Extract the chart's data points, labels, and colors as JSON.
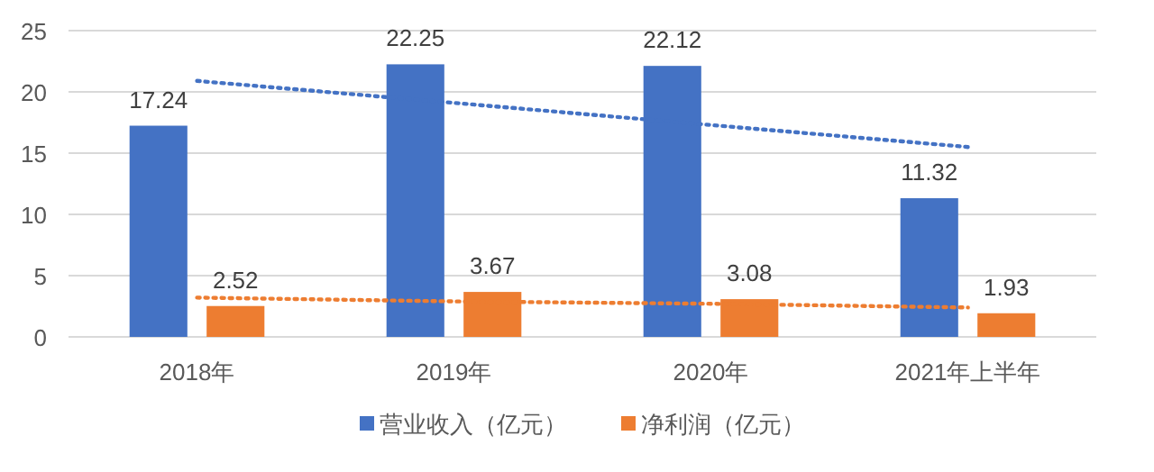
{
  "chart_data": {
    "type": "bar",
    "categories": [
      "2018年",
      "2019年",
      "2020年",
      "2021年上半年"
    ],
    "series": [
      {
        "name": "营业收入（亿元）",
        "color": "#4472c4",
        "values": [
          17.24,
          22.25,
          22.12,
          11.32
        ],
        "value_labels": [
          "17.24",
          "22.25",
          "22.12",
          "11.32"
        ]
      },
      {
        "name": "净利润（亿元）",
        "color": "#ed7d31",
        "values": [
          2.52,
          3.67,
          3.08,
          1.93
        ],
        "value_labels": [
          "2.52",
          "3.67",
          "3.08",
          "1.93"
        ]
      },
      {
        "type": "line",
        "color": "#4472c4",
        "line_style": "dotted",
        "values": [
          20.9,
          19.1,
          17.3,
          15.5
        ]
      },
      {
        "type": "line",
        "color": "#ed7d31",
        "line_style": "dotted",
        "values": [
          3.2,
          2.9,
          2.7,
          2.4
        ]
      }
    ],
    "ylim": [
      0,
      25
    ],
    "yticks": [
      0,
      5,
      10,
      15,
      20,
      25
    ],
    "grid": "y",
    "legend": "bottom"
  }
}
